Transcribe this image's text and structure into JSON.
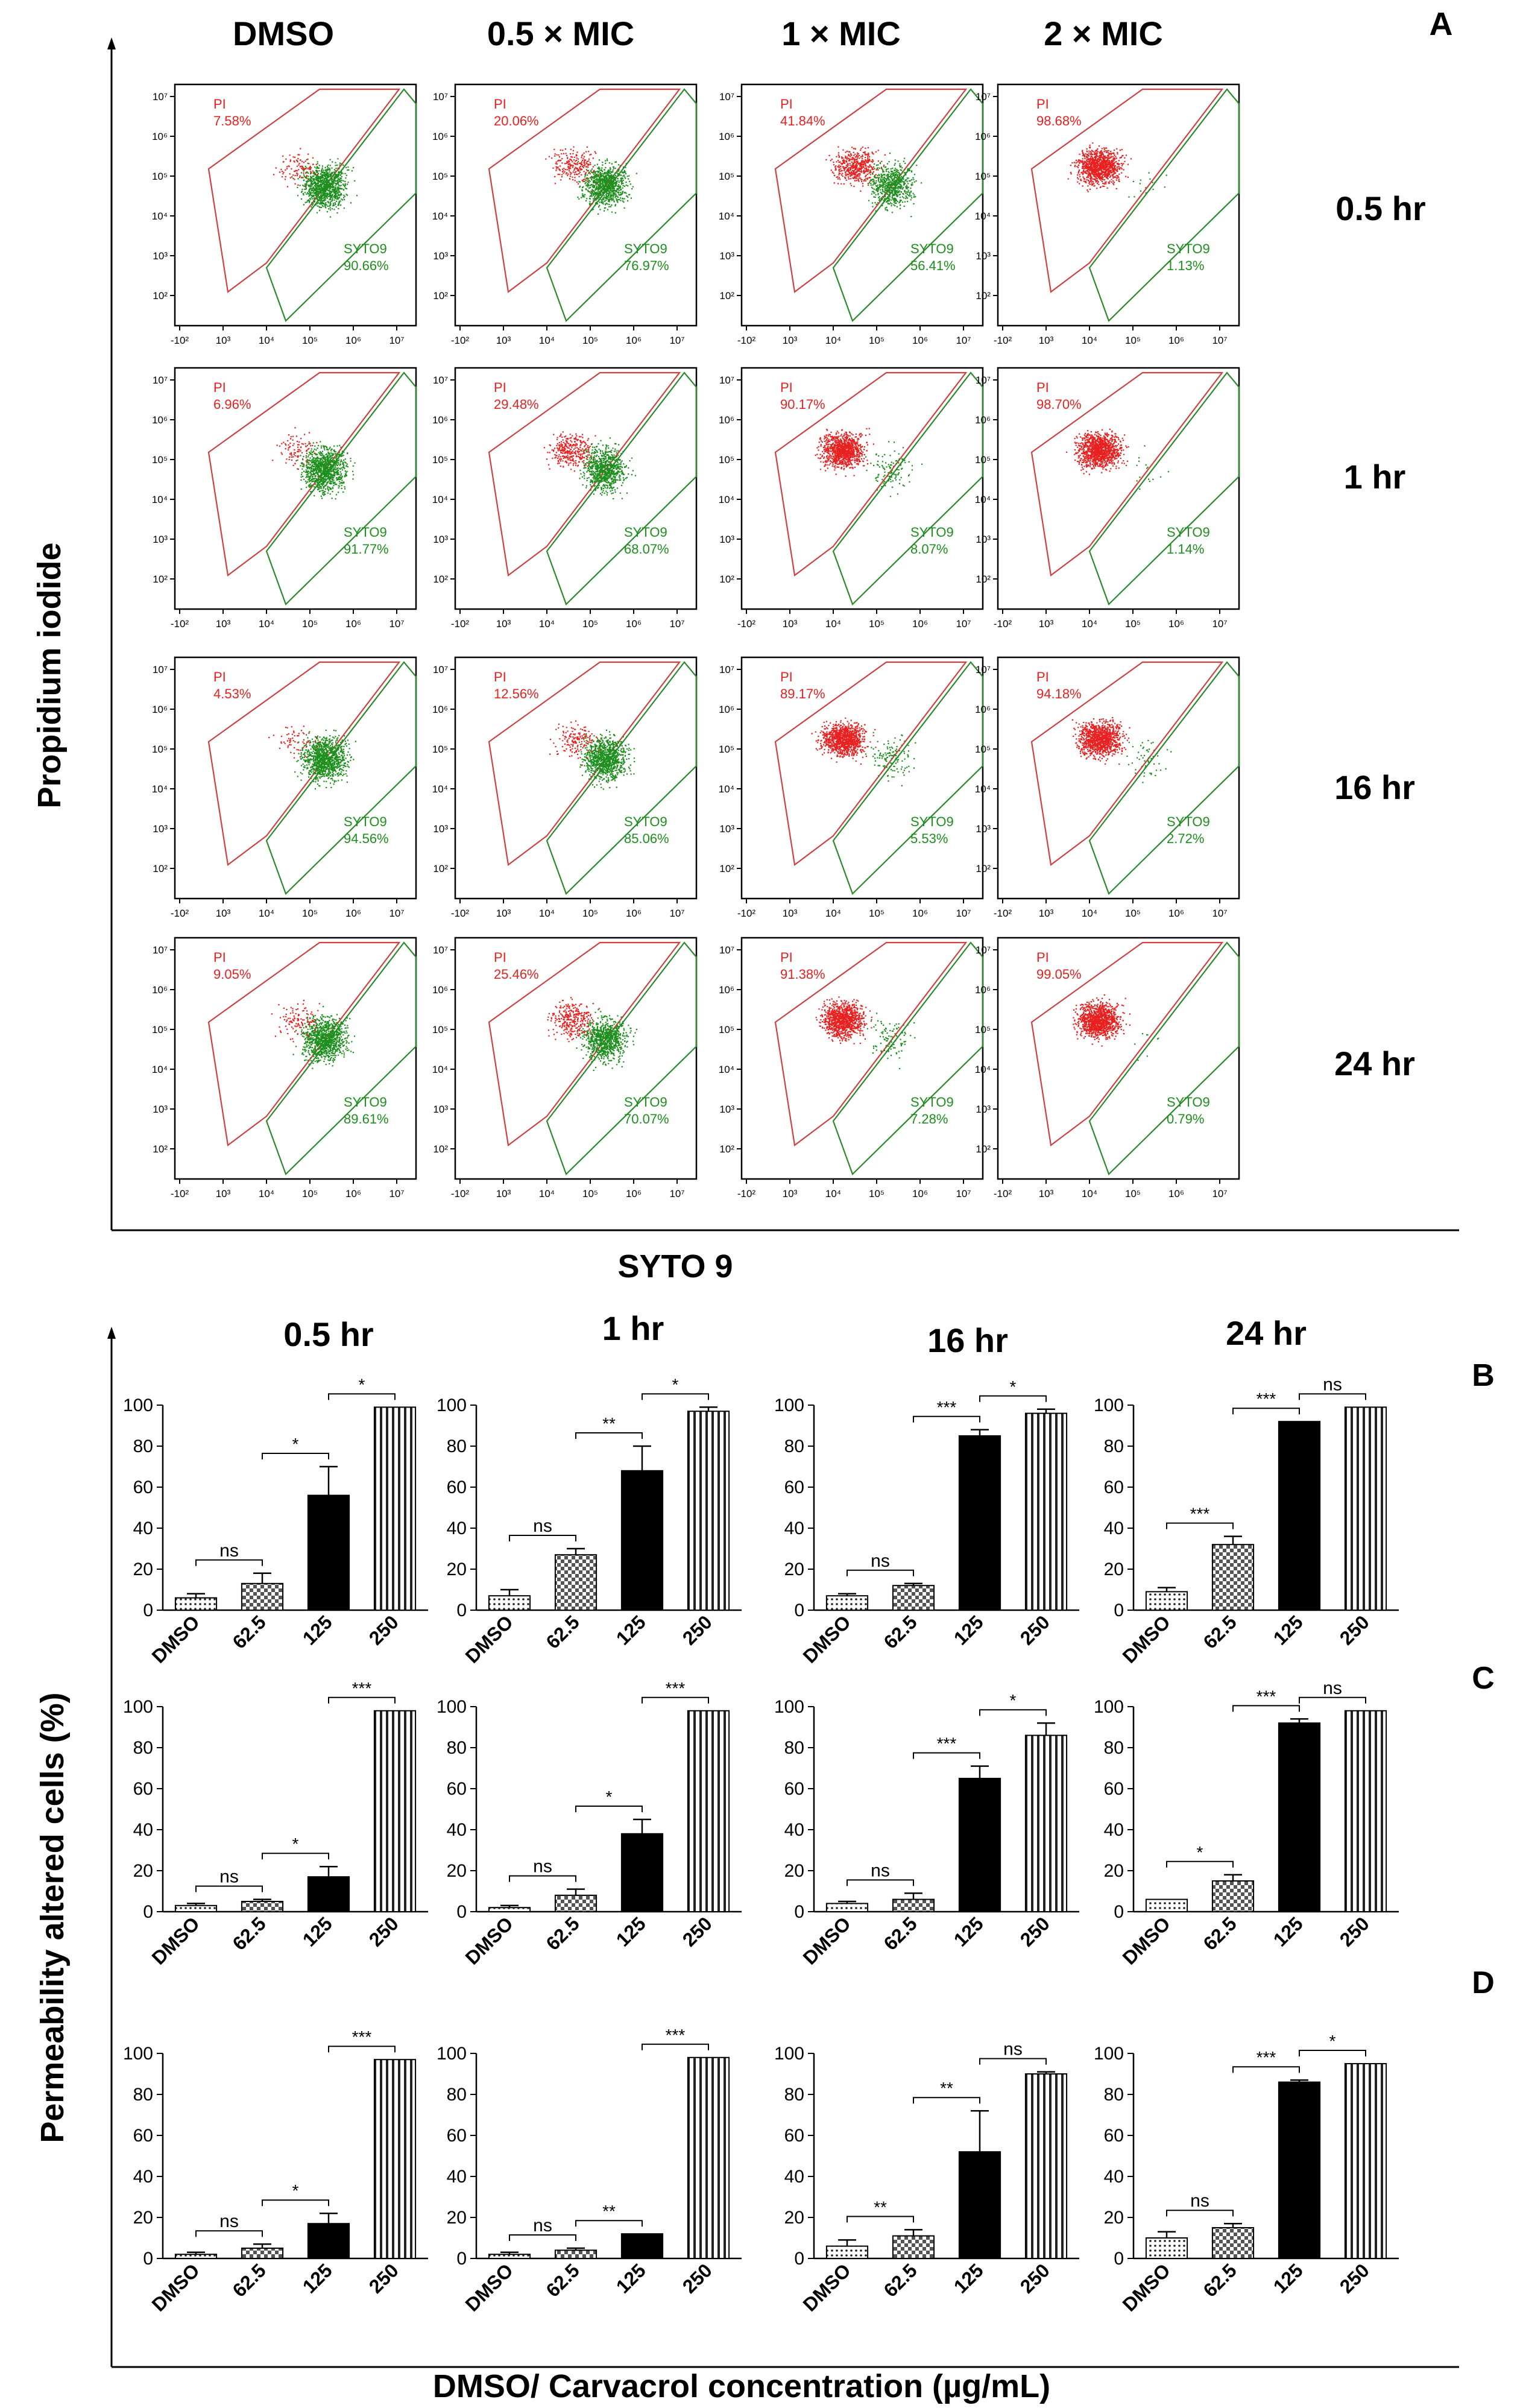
{
  "panel_a": {
    "letter": "A",
    "column_headers": [
      "DMSO",
      "0.5 × MIC",
      "1 × MIC",
      "2 × MIC"
    ],
    "row_labels": [
      "0.5 hr",
      "1 hr",
      "16 hr",
      "24 hr"
    ],
    "y_axis_label": "Propidium iodide",
    "x_axis_label": "SYTO 9",
    "x_ticks": [
      "-10²",
      "10³",
      "10⁴",
      "10⁵",
      "10⁶",
      "10⁷"
    ],
    "y_ticks": [
      "10⁷",
      "10⁶",
      "10⁵",
      "10⁴",
      "10³",
      "10²"
    ],
    "pi_gate_label": "PI",
    "syto9_gate_label": "SYTO9",
    "colors": {
      "pi": "#e8201f",
      "syto9": "#1c8f1c",
      "pi_gate": "#d04040",
      "syto9_gate": "#2a8a2a"
    },
    "plots": [
      [
        {
          "pi": "7.58%",
          "syto9": "90.66%"
        },
        {
          "pi": "20.06%",
          "syto9": "76.97%"
        },
        {
          "pi": "41.84%",
          "syto9": "56.41%"
        },
        {
          "pi": "98.68%",
          "syto9": "1.13%"
        }
      ],
      [
        {
          "pi": "6.96%",
          "syto9": "91.77%"
        },
        {
          "pi": "29.48%",
          "syto9": "68.07%"
        },
        {
          "pi": "90.17%",
          "syto9": "8.07%"
        },
        {
          "pi": "98.70%",
          "syto9": "1.14%"
        }
      ],
      [
        {
          "pi": "4.53%",
          "syto9": "94.56%"
        },
        {
          "pi": "12.56%",
          "syto9": "85.06%"
        },
        {
          "pi": "89.17%",
          "syto9": "5.53%"
        },
        {
          "pi": "94.18%",
          "syto9": "2.72%"
        }
      ],
      [
        {
          "pi": "9.05%",
          "syto9": "89.61%"
        },
        {
          "pi": "25.46%",
          "syto9": "70.07%"
        },
        {
          "pi": "91.38%",
          "syto9": "7.28%"
        },
        {
          "pi": "99.05%",
          "syto9": "0.79%"
        }
      ]
    ]
  },
  "bar_panels": {
    "time_headers": [
      "0.5 hr",
      "1 hr",
      "16 hr",
      "24 hr"
    ],
    "row_letters": [
      "B",
      "C",
      "D"
    ],
    "y_axis_label": "Permeability altered cells (%)",
    "x_axis_label": "DMSO/ Carvacrol concentration (µg/mL)"
  },
  "chart_data": {
    "type": "bar",
    "categories": [
      "DMSO",
      "62.5",
      "125",
      "250"
    ],
    "ylim": [
      0,
      100
    ],
    "y_ticks": [
      "0",
      "20",
      "40",
      "60",
      "80",
      "100"
    ],
    "ylabel": "Permeability altered cells (%)",
    "xlabel": "DMSO/ Carvacrol concentration (µg/mL)",
    "panels": [
      {
        "row": "B",
        "time": "0.5 hr",
        "values": [
          6,
          13,
          56,
          99
        ],
        "errors": [
          2,
          5,
          14,
          0
        ],
        "brackets": [
          {
            "from": 0,
            "to": 1,
            "label": "ns"
          },
          {
            "from": 1,
            "to": 2,
            "label": "*"
          },
          {
            "from": 2,
            "to": 3,
            "label": "*"
          }
        ]
      },
      {
        "row": "B",
        "time": "1 hr",
        "values": [
          7,
          27,
          68,
          97
        ],
        "errors": [
          3,
          3,
          12,
          2
        ],
        "brackets": [
          {
            "from": 0,
            "to": 1,
            "label": "ns"
          },
          {
            "from": 1,
            "to": 2,
            "label": "**"
          },
          {
            "from": 2,
            "to": 3,
            "label": "*"
          }
        ]
      },
      {
        "row": "B",
        "time": "16 hr",
        "values": [
          7,
          12,
          85,
          96
        ],
        "errors": [
          1,
          1,
          3,
          2
        ],
        "brackets": [
          {
            "from": 0,
            "to": 1,
            "label": "ns"
          },
          {
            "from": 1,
            "to": 2,
            "label": "***"
          },
          {
            "from": 2,
            "to": 3,
            "label": "*"
          }
        ]
      },
      {
        "row": "B",
        "time": "24 hr",
        "values": [
          9,
          32,
          92,
          99
        ],
        "errors": [
          2,
          4,
          0,
          0
        ],
        "brackets": [
          {
            "from": 0,
            "to": 1,
            "label": "***"
          },
          {
            "from": 1,
            "to": 2,
            "label": "***"
          },
          {
            "from": 2,
            "to": 3,
            "label": "ns"
          }
        ]
      },
      {
        "row": "C",
        "time": "0.5 hr",
        "values": [
          3,
          5,
          17,
          98
        ],
        "errors": [
          1,
          1,
          5,
          0
        ],
        "brackets": [
          {
            "from": 0,
            "to": 1,
            "label": "ns"
          },
          {
            "from": 1,
            "to": 2,
            "label": "*"
          },
          {
            "from": 2,
            "to": 3,
            "label": "***"
          }
        ]
      },
      {
        "row": "C",
        "time": "1 hr",
        "values": [
          2,
          8,
          38,
          98
        ],
        "errors": [
          1,
          3,
          7,
          0
        ],
        "brackets": [
          {
            "from": 0,
            "to": 1,
            "label": "ns"
          },
          {
            "from": 1,
            "to": 2,
            "label": "*"
          },
          {
            "from": 2,
            "to": 3,
            "label": "***"
          }
        ]
      },
      {
        "row": "C",
        "time": "16 hr",
        "values": [
          4,
          6,
          65,
          86
        ],
        "errors": [
          1,
          3,
          6,
          6
        ],
        "brackets": [
          {
            "from": 0,
            "to": 1,
            "label": "ns"
          },
          {
            "from": 1,
            "to": 2,
            "label": "***"
          },
          {
            "from": 2,
            "to": 3,
            "label": "*"
          }
        ]
      },
      {
        "row": "C",
        "time": "24 hr",
        "values": [
          6,
          15,
          92,
          98
        ],
        "errors": [
          0,
          3,
          2,
          0
        ],
        "brackets": [
          {
            "from": 0,
            "to": 1,
            "label": "*"
          },
          {
            "from": 1,
            "to": 2,
            "label": "***"
          },
          {
            "from": 2,
            "to": 3,
            "label": "ns"
          }
        ]
      },
      {
        "row": "D",
        "time": "0.5 hr",
        "values": [
          2,
          5,
          17,
          97
        ],
        "errors": [
          1,
          2,
          5,
          0
        ],
        "brackets": [
          {
            "from": 0,
            "to": 1,
            "label": "ns"
          },
          {
            "from": 1,
            "to": 2,
            "label": "*"
          },
          {
            "from": 2,
            "to": 3,
            "label": "***"
          }
        ]
      },
      {
        "row": "D",
        "time": "1 hr",
        "values": [
          2,
          4,
          12,
          98
        ],
        "errors": [
          1,
          1,
          0,
          0
        ],
        "brackets": [
          {
            "from": 0,
            "to": 1,
            "label": "ns"
          },
          {
            "from": 1,
            "to": 2,
            "label": "**"
          },
          {
            "from": 2,
            "to": 3,
            "label": "***"
          }
        ]
      },
      {
        "row": "D",
        "time": "16 hr",
        "values": [
          6,
          11,
          52,
          90
        ],
        "errors": [
          3,
          3,
          20,
          1
        ],
        "brackets": [
          {
            "from": 0,
            "to": 1,
            "label": "**"
          },
          {
            "from": 1,
            "to": 2,
            "label": "**"
          },
          {
            "from": 2,
            "to": 3,
            "label": "ns"
          }
        ]
      },
      {
        "row": "D",
        "time": "24 hr",
        "values": [
          10,
          15,
          86,
          95
        ],
        "errors": [
          3,
          2,
          1,
          0
        ],
        "brackets": [
          {
            "from": 0,
            "to": 1,
            "label": "ns"
          },
          {
            "from": 1,
            "to": 2,
            "label": "***"
          },
          {
            "from": 2,
            "to": 3,
            "label": "*"
          }
        ]
      }
    ]
  }
}
